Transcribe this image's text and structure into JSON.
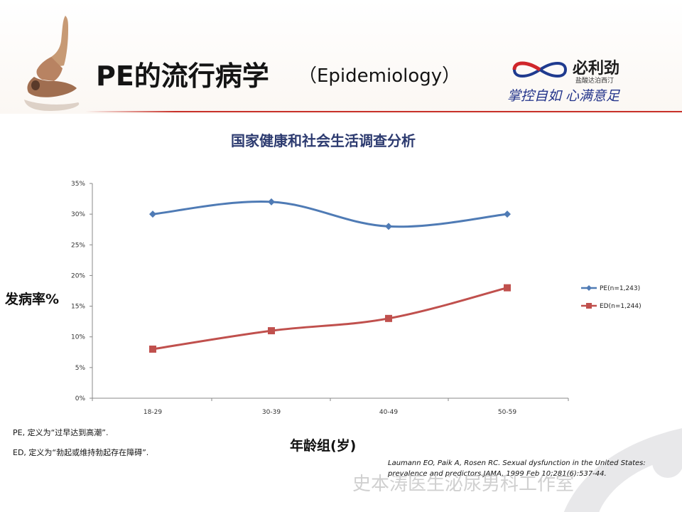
{
  "header": {
    "title": "PE的流行病学",
    "title_paren": "（Epidemiology）",
    "logo": {
      "name": "必利劲",
      "sub": "盐酸达泊西汀",
      "slogan": "掌控自如 心满意足"
    }
  },
  "subtitle": "国家健康和社会生活调查分析",
  "notes": [
    "PE, 定义为“过早达到高潮”.",
    "ED, 定义为“勃起或维持勃起存在障碍”."
  ],
  "citation": "Laumann EO, Paik A, Rosen RC. Sexual dysfunction in the United States: prevalence and predictors.JAMA. 1999 Feb 10;281(6):537-44.",
  "watermark": "史本涛医生泌尿男科工作室",
  "colors": {
    "pe": "#4f7bb5",
    "ed": "#c0504d",
    "rule": "#c8322b",
    "subtitle": "#2d3b70"
  },
  "chart_data": {
    "type": "line",
    "title": "",
    "xlabel": "年龄组(岁)",
    "ylabel": "发病率%",
    "categories": [
      "18-29",
      "30-39",
      "40-49",
      "50-59"
    ],
    "ylim": [
      0,
      35
    ],
    "yticks": [
      "0%",
      "5%",
      "10%",
      "15%",
      "20%",
      "25%",
      "30%",
      "35%"
    ],
    "ytick_values": [
      0,
      5,
      10,
      15,
      20,
      25,
      30,
      35
    ],
    "grid": false,
    "legend": "right",
    "series": [
      {
        "name": "PE(n=1,243)",
        "values": [
          30,
          32,
          28,
          30
        ],
        "marker": "diamond",
        "color": "#4f7bb5"
      },
      {
        "name": "ED(n=1,244)",
        "values": [
          8,
          11,
          13,
          18
        ],
        "marker": "square",
        "color": "#c0504d"
      }
    ]
  }
}
